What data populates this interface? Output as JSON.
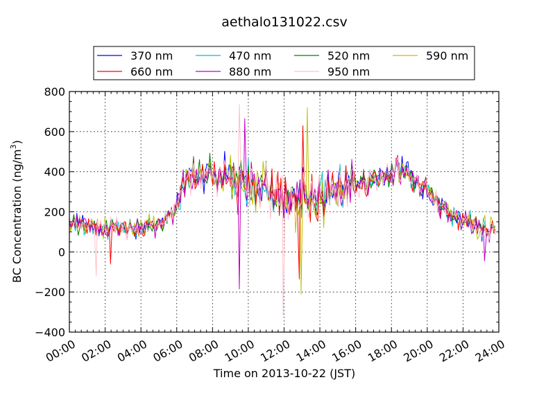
{
  "chart_data": {
    "type": "line",
    "title": "aethalo131022.csv",
    "xlabel": "Time on 2013-10-22 (JST)",
    "ylabel_main": "BC Concentration (ng/m",
    "ylabel_sup": "3",
    "ylabel_close": ")",
    "xlim_hours": [
      0,
      24
    ],
    "ylim": [
      -400,
      800
    ],
    "x_ticks": [
      {
        "h": 0,
        "label": "00:00"
      },
      {
        "h": 2,
        "label": "02:00"
      },
      {
        "h": 4,
        "label": "04:00"
      },
      {
        "h": 6,
        "label": "06:00"
      },
      {
        "h": 8,
        "label": "08:00"
      },
      {
        "h": 10,
        "label": "10:00"
      },
      {
        "h": 12,
        "label": "12:00"
      },
      {
        "h": 14,
        "label": "14:00"
      },
      {
        "h": 16,
        "label": "16:00"
      },
      {
        "h": 18,
        "label": "18:00"
      },
      {
        "h": 20,
        "label": "20:00"
      },
      {
        "h": 22,
        "label": "22:00"
      },
      {
        "h": 24,
        "label": "24:00"
      }
    ],
    "y_ticks": [
      {
        "v": -400,
        "label": "−400"
      },
      {
        "v": -200,
        "label": "−200"
      },
      {
        "v": 0,
        "label": "0"
      },
      {
        "v": 200,
        "label": "200"
      },
      {
        "v": 400,
        "label": "400"
      },
      {
        "v": 600,
        "label": "600"
      },
      {
        "v": 800,
        "label": "800"
      }
    ],
    "grid": true,
    "legend_placement": "top, outside, 4 columns",
    "series": [
      {
        "name": "370 nm",
        "color": "#0000ff"
      },
      {
        "name": "470 nm",
        "color": "#00bfbf"
      },
      {
        "name": "520 nm",
        "color": "#008000"
      },
      {
        "name": "590 nm",
        "color": "#bfbf00"
      },
      {
        "name": "660 nm",
        "color": "#ff0000"
      },
      {
        "name": "880 nm",
        "color": "#bf00bf"
      },
      {
        "name": "950 nm",
        "color": "#ffc0cb"
      }
    ],
    "baseline_profile": [
      [
        0.0,
        140
      ],
      [
        1.0,
        135
      ],
      [
        2.0,
        125
      ],
      [
        3.0,
        115
      ],
      [
        4.0,
        125
      ],
      [
        5.0,
        140
      ],
      [
        5.5,
        170
      ],
      [
        6.0,
        230
      ],
      [
        6.5,
        320
      ],
      [
        7.0,
        370
      ],
      [
        8.0,
        385
      ],
      [
        9.0,
        380
      ],
      [
        10.0,
        340
      ],
      [
        11.0,
        300
      ],
      [
        12.0,
        270
      ],
      [
        13.0,
        260
      ],
      [
        14.0,
        275
      ],
      [
        15.0,
        320
      ],
      [
        16.0,
        330
      ],
      [
        17.0,
        360
      ],
      [
        18.0,
        385
      ],
      [
        19.0,
        390
      ],
      [
        20.0,
        300
      ],
      [
        21.0,
        210
      ],
      [
        22.0,
        150
      ],
      [
        23.0,
        120
      ],
      [
        23.8,
        130
      ]
    ],
    "notable_points": [
      {
        "series": "950 nm",
        "h": 9.5,
        "v": 735
      },
      {
        "series": "590 nm",
        "h": 13.3,
        "v": 720
      },
      {
        "series": "880 nm",
        "h": 9.8,
        "v": 665
      },
      {
        "series": "660 nm",
        "h": 13.05,
        "v": 630
      },
      {
        "series": "950 nm",
        "h": 11.95,
        "v": -320
      },
      {
        "series": "590 nm",
        "h": 12.95,
        "v": -210
      },
      {
        "series": "880 nm",
        "h": 9.5,
        "v": -185
      },
      {
        "series": "660 nm",
        "h": 12.85,
        "v": -135
      },
      {
        "series": "950 nm",
        "h": 1.5,
        "v": -120
      },
      {
        "series": "660 nm",
        "h": 2.3,
        "v": -60
      },
      {
        "series": "880 nm",
        "h": 23.2,
        "v": -45
      }
    ]
  }
}
